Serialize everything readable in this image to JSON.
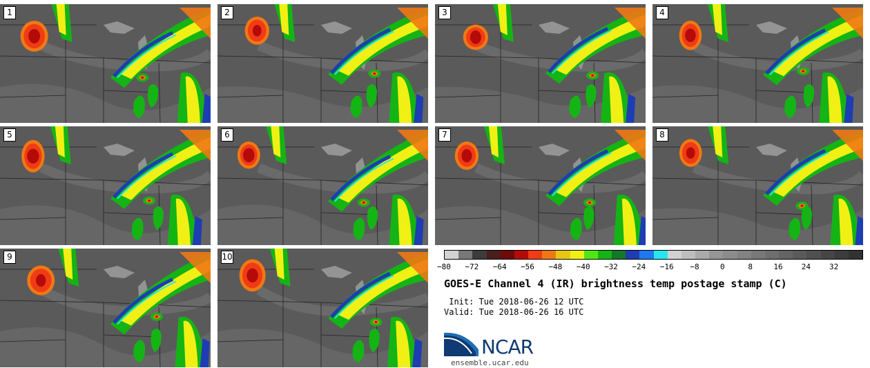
{
  "panels": [
    "1",
    "2",
    "3",
    "4",
    "5",
    "6",
    "7",
    "8",
    "9",
    "10"
  ],
  "colorbar": {
    "colors": [
      "#d2d2d2",
      "#787878",
      "#3c3c3c",
      "#4a1e1e",
      "#6e0a0a",
      "#b40a0a",
      "#f03c14",
      "#f07814",
      "#e6c814",
      "#f0f014",
      "#50e614",
      "#14b414",
      "#147828",
      "#1e3cb4",
      "#1e78f0",
      "#28e6f0",
      "#d2d2d2",
      "#bebebe",
      "#aaaaaa",
      "#969696",
      "#8c8c8c",
      "#828282",
      "#787878",
      "#6e6e6e",
      "#646464",
      "#5a5a5a",
      "#505050",
      "#464646",
      "#3c3c3c",
      "#323232"
    ],
    "ticks": [
      "−80",
      "−72",
      "−64",
      "−56",
      "−48",
      "−40",
      "−32",
      "−24",
      "−16",
      "−8",
      "0",
      "8",
      "16",
      "24",
      "32"
    ]
  },
  "title": "GOES-E Channel 4 (IR) brightness temp postage stamp (C)",
  "init": " Init: Tue 2018-06-26 12 UTC",
  "valid": "Valid: Tue 2018-06-26 16 UTC",
  "logo_text": "NCAR",
  "url": "ensemble.ucar.edu"
}
